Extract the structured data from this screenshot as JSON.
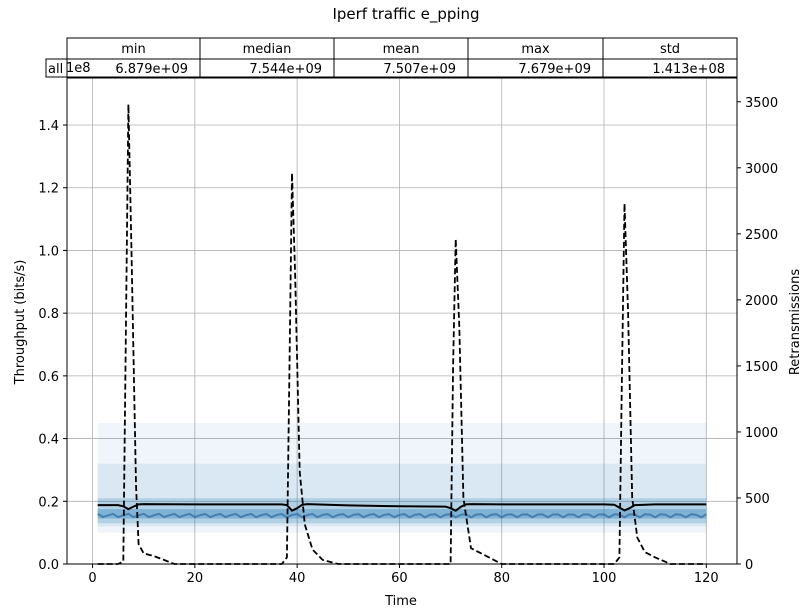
{
  "chart_data": {
    "type": "line",
    "title": "Iperf traffic e_pping",
    "xlabel": "Time",
    "ylabel": "Throughput (bits/s)",
    "y2label": "Retransmissions",
    "y_offset_label": "1e8",
    "xlim": [
      -5,
      126
    ],
    "ylim": [
      0,
      1.55
    ],
    "y2lim": [
      0,
      3680
    ],
    "xticks": [
      0,
      20,
      40,
      60,
      80,
      100,
      120
    ],
    "yticks": [
      0.0,
      0.2,
      0.4,
      0.6,
      0.8,
      1.0,
      1.2,
      1.4
    ],
    "y2ticks": [
      0,
      500,
      1000,
      1500,
      2000,
      2500,
      3000,
      3500
    ],
    "grid": true,
    "stats_table": {
      "columns": [
        "min",
        "median",
        "mean",
        "max",
        "std"
      ],
      "row_label": "all",
      "values": [
        "6.879e+09",
        "7.544e+09",
        "7.507e+09",
        "7.679e+09",
        "1.413e+08"
      ]
    },
    "series": [
      {
        "style": "solid",
        "axis": "left",
        "x": [
          1,
          5,
          6,
          7,
          8,
          9,
          10,
          20,
          30,
          37,
          38,
          39,
          40,
          41,
          42,
          50,
          60,
          69,
          70,
          71,
          72,
          73,
          74,
          80,
          90,
          100,
          102,
          103,
          104,
          105,
          106,
          110,
          120
        ],
        "values": [
          0.188,
          0.188,
          0.184,
          0.175,
          0.183,
          0.19,
          0.191,
          0.19,
          0.19,
          0.19,
          0.188,
          0.17,
          0.178,
          0.189,
          0.191,
          0.187,
          0.184,
          0.183,
          0.178,
          0.17,
          0.182,
          0.19,
          0.191,
          0.19,
          0.19,
          0.19,
          0.189,
          0.18,
          0.171,
          0.178,
          0.188,
          0.19,
          0.19
        ]
      },
      {
        "style": "dashed",
        "axis": "right",
        "x": [
          1,
          5,
          6,
          6.5,
          7,
          7.6,
          8.5,
          9,
          10,
          12,
          14,
          16,
          20,
          37,
          38,
          38.5,
          39,
          39.6,
          40.5,
          41.5,
          43,
          45,
          48,
          70,
          70.5,
          71,
          71.7,
          72.5,
          74,
          76,
          80,
          102,
          103,
          103.5,
          104,
          104.7,
          105.5,
          106.5,
          108,
          110,
          113,
          120
        ],
        "values": [
          0,
          0,
          20,
          1700,
          3480,
          2400,
          600,
          150,
          80,
          60,
          30,
          0,
          0,
          0,
          50,
          1500,
          2960,
          2200,
          700,
          300,
          110,
          30,
          0,
          0,
          1500,
          2460,
          1800,
          500,
          120,
          80,
          0,
          0,
          50,
          1400,
          2730,
          1900,
          500,
          200,
          90,
          50,
          0,
          0
        ]
      }
    ]
  }
}
